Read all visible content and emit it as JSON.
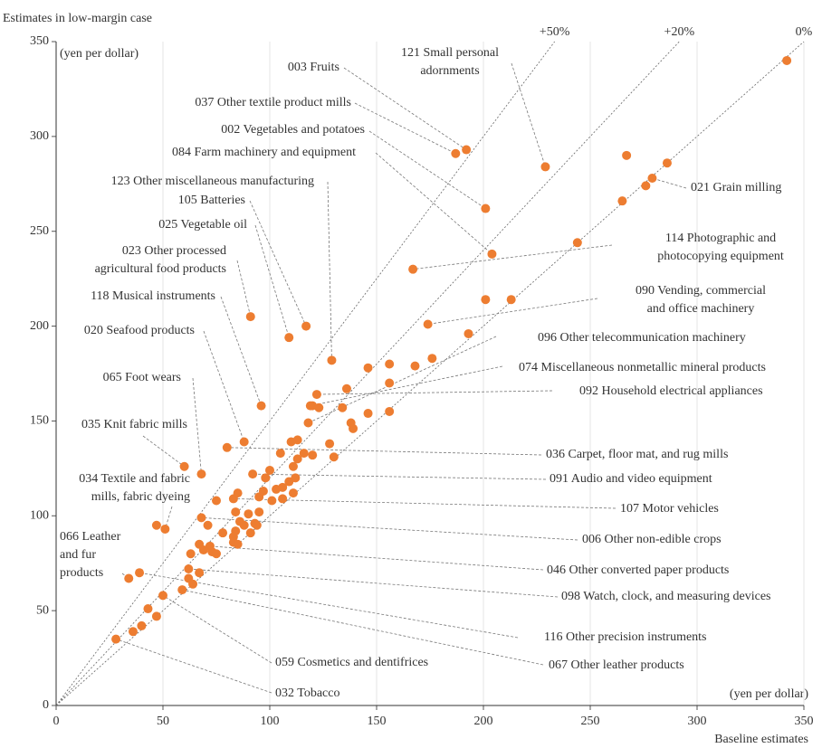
{
  "chart_data": {
    "type": "scatter",
    "title": "Estimates in low-margin case",
    "y_unit": "(yen per dollar)",
    "x_unit": "(yen per dollar)",
    "x_label": "Baseline estimates",
    "color": "#ed7d31",
    "xlim": [
      0,
      350
    ],
    "ylim": [
      0,
      350
    ],
    "xticks": [
      0,
      50,
      100,
      150,
      200,
      250,
      300,
      350
    ],
    "yticks": [
      0,
      50,
      100,
      150,
      200,
      250,
      300,
      350
    ],
    "grid": "x",
    "reference_lines": [
      {
        "value": 50,
        "label": "+50%"
      },
      {
        "value": 20,
        "label": "+20%"
      },
      {
        "value": 0,
        "label": "0%"
      }
    ],
    "x": [
      192,
      187,
      229,
      201,
      204,
      279,
      129,
      117,
      109,
      91,
      96,
      88,
      68,
      60,
      51,
      34,
      167,
      174,
      118,
      119,
      122,
      80,
      92,
      83,
      68,
      72,
      62,
      39,
      50,
      59,
      28,
      342,
      267,
      286,
      276,
      265,
      244,
      201,
      213,
      193,
      146,
      156,
      168,
      176,
      156,
      136,
      120,
      123,
      134,
      146,
      156,
      138,
      139,
      110,
      113,
      105,
      113,
      116,
      120,
      128,
      130,
      111,
      98,
      100,
      109,
      112,
      85,
      95,
      97,
      101,
      103,
      106,
      106,
      111,
      75,
      71,
      84,
      86,
      90,
      88,
      91,
      93,
      95,
      94,
      84,
      78,
      83,
      83,
      85,
      67,
      69,
      73,
      75,
      63,
      62,
      67,
      64,
      43,
      47,
      40,
      36,
      47
    ],
    "values": [
      293,
      291,
      284,
      262,
      238,
      278,
      182,
      200,
      194,
      205,
      158,
      139,
      122,
      126,
      93,
      67,
      230,
      201,
      149,
      158,
      164,
      136,
      122,
      109,
      99,
      84,
      72,
      70,
      58,
      61,
      35,
      340,
      290,
      286,
      274,
      266,
      244,
      214,
      214,
      196,
      178,
      180,
      179,
      183,
      170,
      167,
      158,
      157,
      157,
      154,
      155,
      149,
      146,
      139,
      140,
      133,
      130,
      133,
      132,
      138,
      131,
      126,
      120,
      124,
      118,
      120,
      112,
      110,
      113,
      108,
      114,
      115,
      109,
      112,
      108,
      95,
      102,
      97,
      101,
      95,
      91,
      96,
      102,
      95,
      92,
      91,
      89,
      86,
      85,
      85,
      82,
      81,
      80,
      80,
      67,
      70,
      64,
      51,
      47,
      42,
      39,
      95
    ],
    "point_labels": [
      [
        "003 Fruits"
      ],
      [
        "037 Other textile product mills"
      ],
      [
        "121 Small personal",
        "adornments"
      ],
      [
        "002 Vegetables and potatoes"
      ],
      [
        "084 Farm machinery and equipment"
      ],
      [
        "021 Grain milling"
      ],
      [
        "123 Other miscellaneous manufacturing"
      ],
      [
        "105 Batteries"
      ],
      [
        "025 Vegetable oil"
      ],
      [
        "023 Other processed",
        "agricultural food products"
      ],
      [
        "118 Musical instruments"
      ],
      [
        "020 Seafood products"
      ],
      [
        "065 Foot wears"
      ],
      [
        "035 Knit fabric mills"
      ],
      [
        "034 Textile and fabric",
        "mills, fabric dyeing"
      ],
      [
        "066 Leather",
        "and fur",
        "products"
      ],
      [
        "114 Photographic and",
        "photocopying equipment"
      ],
      [
        "090 Vending, commercial",
        "and office machinery"
      ],
      [
        "096 Other telecommunication machinery"
      ],
      [
        "074 Miscellaneous nonmetallic mineral products"
      ],
      [
        "092 Household electrical appliances"
      ],
      [
        "036 Carpet, floor mat, and rug mills"
      ],
      [
        "091 Audio and video equipment"
      ],
      [
        "107 Motor vehicles"
      ],
      [
        "006 Other non-edible crops"
      ],
      [
        "046 Other converted paper products"
      ],
      [
        "098 Watch, clock, and measuring devices"
      ],
      [
        "116 Other precision instruments"
      ],
      [
        "059 Cosmetics and dentifrices"
      ],
      [
        "067 Other leather products"
      ],
      [
        "032 Tobacco"
      ],
      null,
      null,
      null,
      null,
      null,
      null,
      null,
      null,
      null,
      null,
      null,
      null,
      null,
      null,
      null,
      null,
      null,
      null,
      null,
      null,
      null,
      null,
      null,
      null,
      null,
      null,
      null,
      null,
      null,
      null,
      null,
      null,
      null,
      null,
      null,
      null,
      null,
      null,
      null,
      null,
      null,
      null,
      null,
      null,
      null,
      null,
      null,
      null,
      null,
      null,
      null,
      null,
      null,
      null,
      null,
      null,
      null,
      null,
      null,
      null,
      null,
      null,
      null,
      null,
      null,
      null,
      null
    ]
  }
}
